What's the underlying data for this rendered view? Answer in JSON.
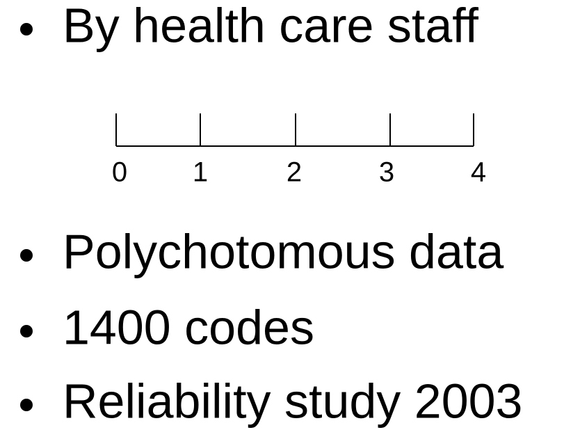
{
  "bullets_top": [
    "By health care staff"
  ],
  "scale": {
    "labels": [
      "0",
      "1",
      "2",
      "3",
      "4"
    ]
  },
  "bullets": [
    "Polychotomous data",
    "1400 codes",
    "Reliability study 2003"
  ]
}
